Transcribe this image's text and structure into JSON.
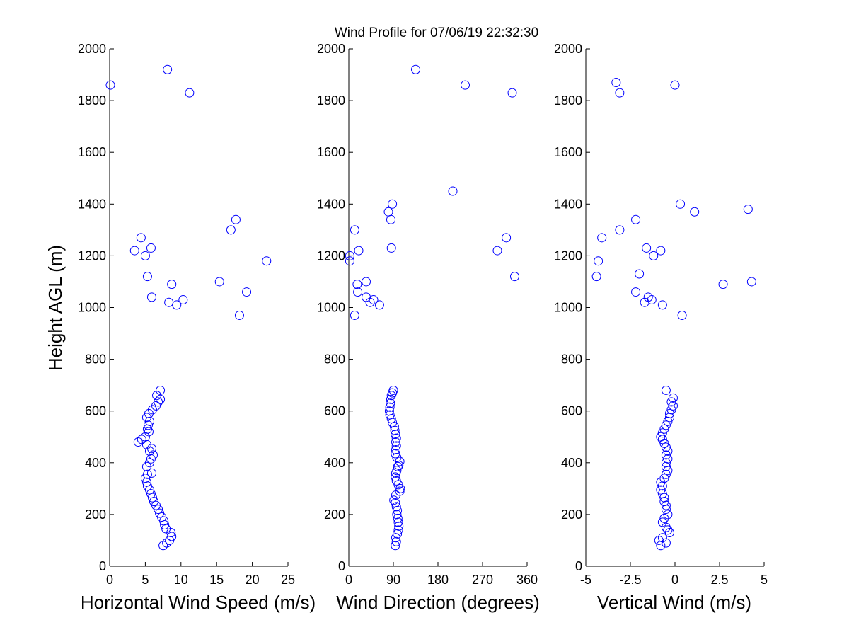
{
  "figure": {
    "title": "Wind Profile for  07/06/19 22:32:30",
    "ylabel": "Height AGL (m)",
    "marker_color": "#0000ff"
  },
  "chart_data": [
    {
      "type": "scatter",
      "xlabel": "Horizontal Wind Speed (m/s)",
      "ylabel": "Height AGL (m)",
      "xlim": [
        0,
        25
      ],
      "ylim": [
        0,
        2000
      ],
      "xticks": [
        0,
        5,
        10,
        15,
        20,
        25
      ],
      "xtick_labels": [
        "0",
        "5",
        "10",
        "15",
        "20",
        "25"
      ],
      "yticks": [
        0,
        200,
        400,
        600,
        800,
        1000,
        1200,
        1400,
        1600,
        1800,
        2000
      ],
      "ytick_labels": [
        "0",
        "200",
        "400",
        "600",
        "800",
        "1000",
        "1200",
        "1400",
        "1600",
        "1800",
        "2000"
      ],
      "grid": false,
      "x": [
        7.5,
        8.0,
        8.4,
        8.7,
        8.6,
        7.9,
        7.7,
        7.6,
        7.3,
        7.0,
        6.8,
        6.5,
        6.2,
        6.0,
        5.8,
        5.6,
        5.3,
        5.2,
        5.0,
        5.3,
        5.9,
        5.2,
        5.6,
        5.8,
        6.1,
        5.6,
        5.9,
        5.2,
        4.0,
        4.5,
        5.0,
        5.5,
        5.3,
        5.4,
        5.6,
        5.2,
        5.5,
        6.0,
        6.5,
        6.8,
        7.1,
        6.6,
        7.1,
        18.2,
        9.4,
        8.3,
        10.3,
        19.2,
        5.9,
        8.7,
        15.4,
        5.3,
        22.0,
        3.5,
        5.0,
        5.8,
        4.4,
        17.0,
        17.7,
        11.2,
        0.1,
        8.1
      ],
      "y": [
        80,
        90,
        100,
        115,
        130,
        145,
        160,
        175,
        190,
        205,
        220,
        235,
        250,
        265,
        280,
        295,
        310,
        325,
        340,
        355,
        360,
        385,
        400,
        415,
        430,
        445,
        455,
        470,
        480,
        490,
        500,
        520,
        530,
        545,
        560,
        575,
        590,
        605,
        620,
        635,
        645,
        660,
        680,
        970,
        1010,
        1020,
        1030,
        1060,
        1040,
        1090,
        1100,
        1120,
        1180,
        1220,
        1200,
        1230,
        1270,
        1300,
        1340,
        1830,
        1860,
        1920
      ]
    },
    {
      "type": "scatter",
      "xlabel": "Wind Direction (degrees)",
      "xlim": [
        0,
        360
      ],
      "ylim": [
        0,
        2000
      ],
      "xticks": [
        0,
        90,
        180,
        270,
        360
      ],
      "xtick_labels": [
        "0",
        "90",
        "180",
        "270",
        "360"
      ],
      "yticks": [
        0,
        200,
        400,
        600,
        800,
        1000,
        1200,
        1400,
        1600,
        1800,
        2000
      ],
      "ytick_labels": [
        "0",
        "200",
        "400",
        "600",
        "800",
        "1000",
        "1200",
        "1400",
        "1600",
        "1800",
        "2000"
      ],
      "grid": false,
      "x": [
        94,
        96,
        95,
        98,
        100,
        101,
        100,
        99,
        97,
        98,
        96,
        94,
        91,
        95,
        103,
        104,
        100,
        96,
        94,
        95,
        97,
        99,
        101,
        103,
        97,
        94,
        95,
        96,
        95,
        96,
        94,
        93,
        92,
        88,
        86,
        83,
        82,
        83,
        84,
        85,
        86,
        88,
        90,
        12,
        62,
        43,
        50,
        18,
        35,
        17,
        35,
        335,
        2,
        20,
        2,
        300,
        318,
        12,
        86,
        85,
        80,
        88,
        210,
        135,
        235,
        330
      ],
      "y": [
        80,
        95,
        110,
        125,
        140,
        155,
        170,
        185,
        200,
        215,
        230,
        245,
        255,
        275,
        290,
        300,
        315,
        330,
        345,
        360,
        370,
        385,
        390,
        405,
        420,
        435,
        450,
        465,
        480,
        495,
        510,
        525,
        540,
        555,
        570,
        585,
        600,
        615,
        630,
        645,
        660,
        670,
        680,
        970,
        1010,
        1020,
        1030,
        1060,
        1040,
        1090,
        1100,
        1120,
        1180,
        1220,
        1200,
        1220,
        1270,
        1300,
        1230,
        1340,
        1370,
        1400,
        1450,
        1920,
        1860,
        1830
      ]
    },
    {
      "type": "scatter",
      "xlabel": "Vertical Wind (m/s)",
      "xlim": [
        -5,
        5
      ],
      "ylim": [
        0,
        2000
      ],
      "xticks": [
        -5,
        -2.5,
        0,
        2.5,
        5
      ],
      "xtick_labels": [
        "-5",
        "-2.5",
        "0",
        "2.5",
        "5"
      ],
      "yticks": [
        0,
        200,
        400,
        600,
        800,
        1000,
        1200,
        1400,
        1600,
        1800,
        2000
      ],
      "ytick_labels": [
        "0",
        "200",
        "400",
        "600",
        "800",
        "1000",
        "1200",
        "1400",
        "1600",
        "1800",
        "2000"
      ],
      "grid": false,
      "x": [
        -0.8,
        -0.5,
        -0.9,
        -0.7,
        -0.3,
        -0.4,
        -0.5,
        -0.7,
        -0.6,
        -0.4,
        -0.5,
        -0.5,
        -0.6,
        -0.6,
        -0.7,
        -0.8,
        -0.7,
        -0.8,
        -0.6,
        -0.5,
        -0.4,
        -0.5,
        -0.5,
        -0.4,
        -0.5,
        -0.4,
        -0.5,
        -0.6,
        -0.7,
        -0.8,
        -0.7,
        -0.6,
        -0.5,
        -0.4,
        -0.3,
        -0.3,
        -0.2,
        -0.1,
        -0.2,
        -0.1,
        -0.5,
        0.4,
        -0.7,
        -1.7,
        -1.3,
        -2.2,
        -1.5,
        2.7,
        4.3,
        -4.4,
        -2.0,
        -1.2,
        -0.8,
        -4.3,
        -1.6,
        -4.1,
        -3.1,
        -2.2,
        0.3,
        1.1,
        4.1,
        -3.3,
        -3.1,
        0.0
      ],
      "y": [
        80,
        90,
        100,
        110,
        130,
        140,
        150,
        170,
        185,
        200,
        220,
        235,
        250,
        265,
        280,
        295,
        310,
        325,
        340,
        355,
        370,
        385,
        400,
        415,
        430,
        445,
        460,
        475,
        490,
        500,
        515,
        530,
        545,
        560,
        575,
        590,
        605,
        620,
        635,
        650,
        680,
        970,
        1010,
        1020,
        1030,
        1060,
        1040,
        1090,
        1100,
        1120,
        1130,
        1200,
        1220,
        1180,
        1230,
        1270,
        1300,
        1340,
        1400,
        1370,
        1380,
        1870,
        1830,
        1860
      ]
    }
  ]
}
